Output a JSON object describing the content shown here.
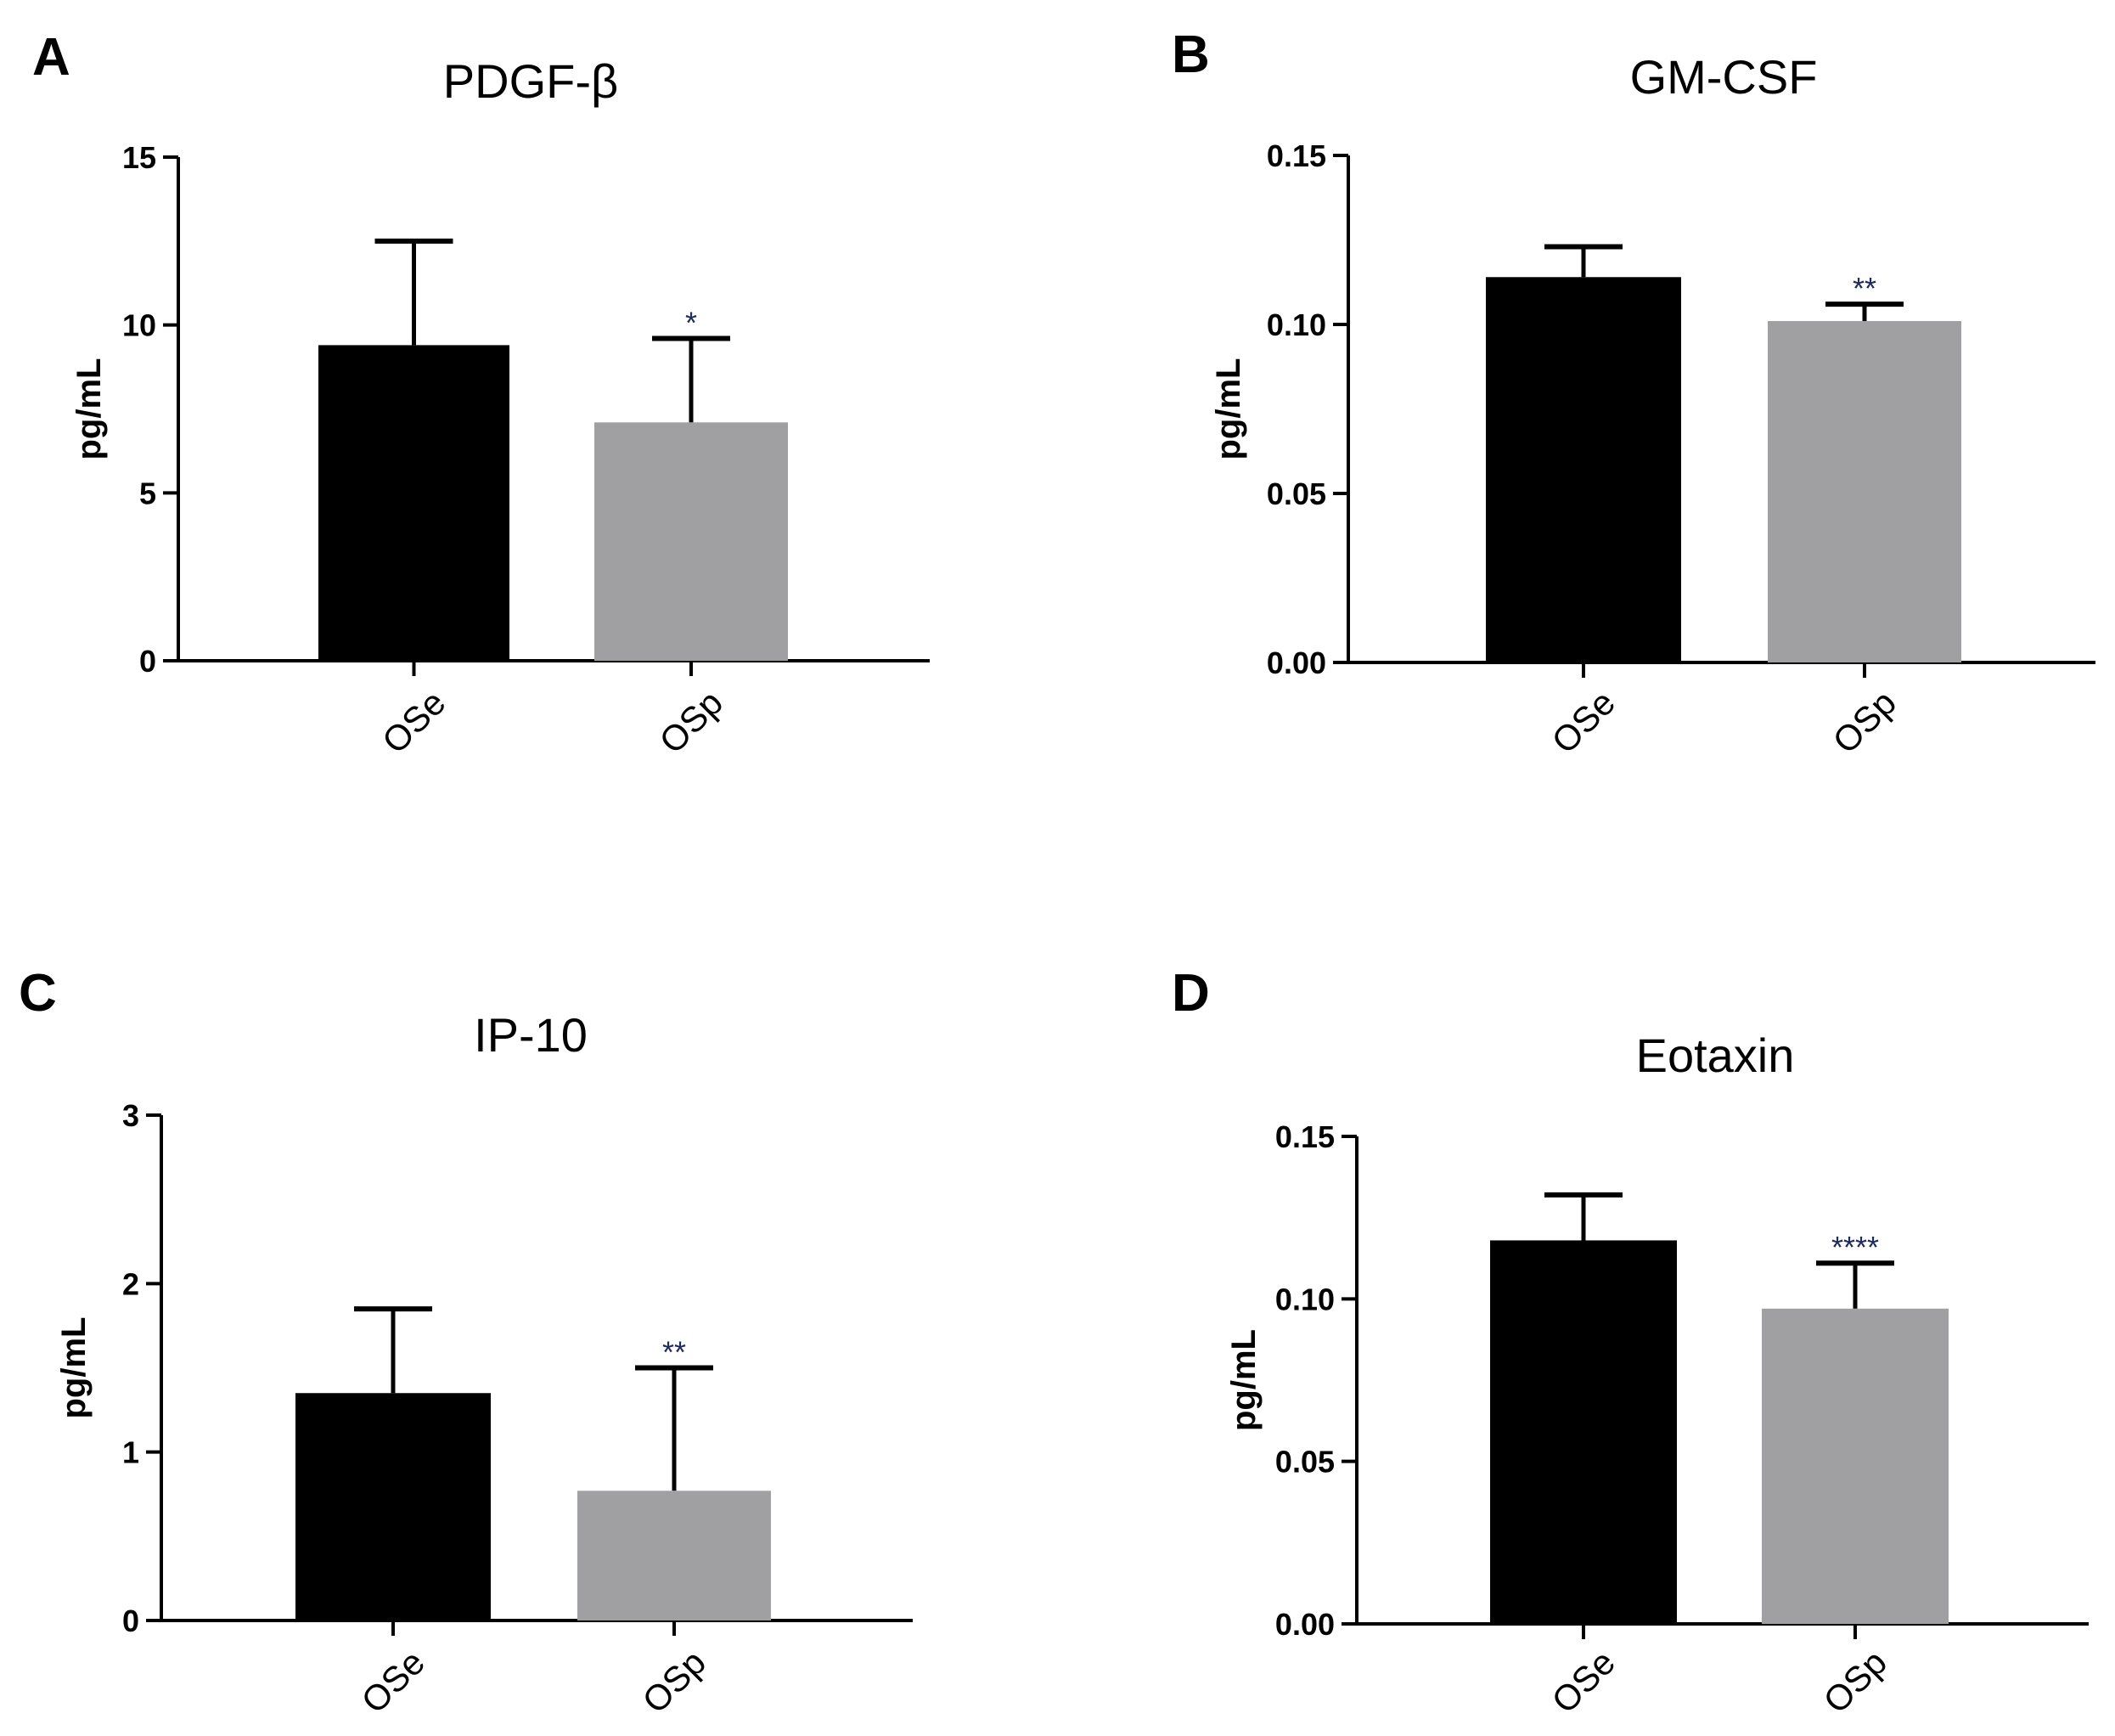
{
  "figure": {
    "panels": [
      "A",
      "B",
      "C",
      "D"
    ]
  },
  "colors": {
    "OSe": "#000000",
    "OSp": "#a0a0a3",
    "axis": "#000000",
    "significance": "#1d2a5a"
  },
  "chart_data": [
    {
      "panel": "A",
      "type": "bar",
      "title": "PDGF-β",
      "xlabel": "",
      "ylabel": "pg/mL",
      "ylim": [
        0,
        15
      ],
      "yticks": [
        0,
        5,
        10,
        15
      ],
      "ytick_labels": [
        "0",
        "5",
        "10",
        "15"
      ],
      "categories": [
        "OSe",
        "OSp"
      ],
      "values": [
        9.4,
        7.1
      ],
      "errors": [
        3.1,
        2.5
      ],
      "significance": [
        "",
        "*"
      ]
    },
    {
      "panel": "B",
      "type": "bar",
      "title": "GM-CSF",
      "xlabel": "",
      "ylabel": "pg/mL",
      "ylim": [
        0,
        0.15
      ],
      "yticks": [
        0,
        0.05,
        0.1,
        0.15
      ],
      "ytick_labels": [
        "0.00",
        "0.05",
        "0.10",
        "0.15"
      ],
      "categories": [
        "OSe",
        "OSp"
      ],
      "values": [
        0.114,
        0.101
      ],
      "errors": [
        0.009,
        0.005
      ],
      "significance": [
        "",
        "**"
      ]
    },
    {
      "panel": "C",
      "type": "bar",
      "title": "IP-10",
      "xlabel": "",
      "ylabel": "pg/mL",
      "ylim": [
        0,
        3
      ],
      "yticks": [
        0,
        1,
        2,
        3
      ],
      "ytick_labels": [
        "0",
        "1",
        "2",
        "3"
      ],
      "categories": [
        "OSe",
        "OSp"
      ],
      "values": [
        1.35,
        0.77
      ],
      "errors": [
        0.5,
        0.73
      ],
      "significance": [
        "",
        "**"
      ]
    },
    {
      "panel": "D",
      "type": "bar",
      "title": "Eotaxin",
      "xlabel": "",
      "ylabel": "pg/mL",
      "ylim": [
        0,
        0.15
      ],
      "yticks": [
        0,
        0.05,
        0.1,
        0.15
      ],
      "ytick_labels": [
        "0.00",
        "0.05",
        "0.10",
        "0.15"
      ],
      "categories": [
        "OSe",
        "OSp"
      ],
      "values": [
        0.118,
        0.097
      ],
      "errors": [
        0.014,
        0.014
      ],
      "significance": [
        "",
        "****"
      ]
    }
  ]
}
